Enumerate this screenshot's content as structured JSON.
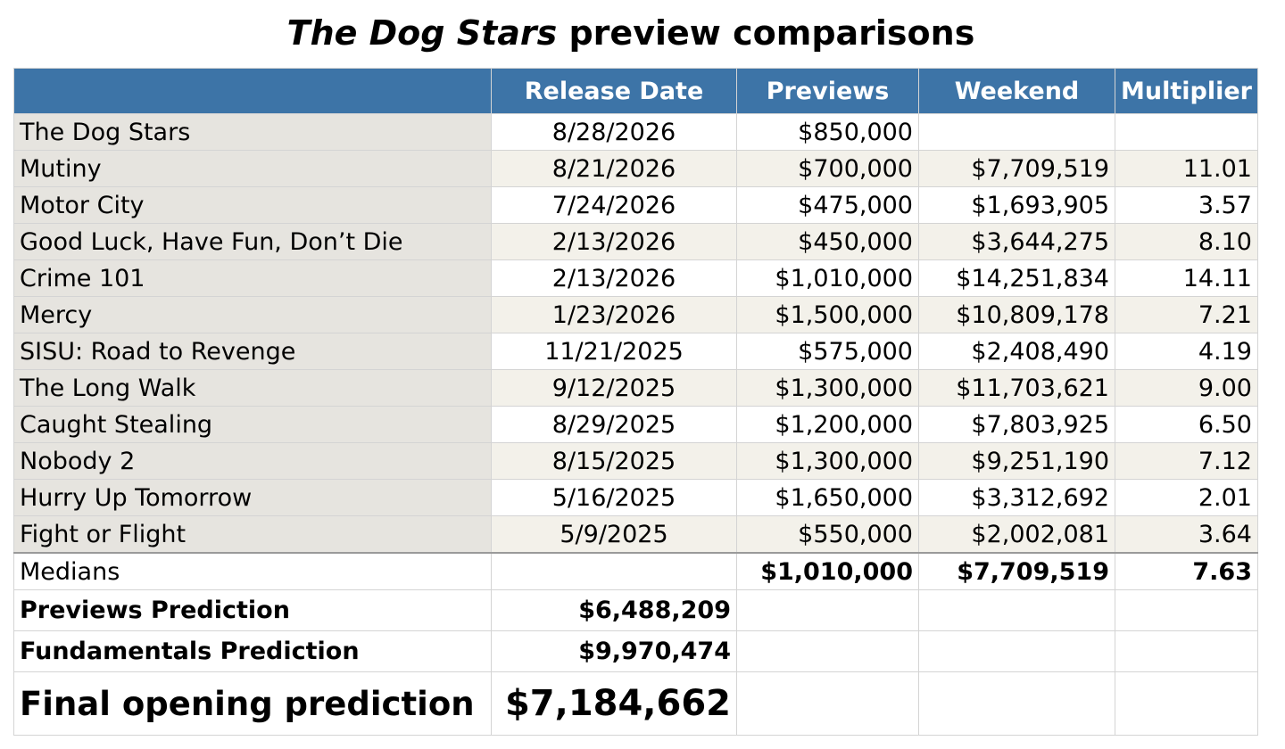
{
  "title": {
    "italic": "The Dog Stars",
    "rest": " preview comparisons"
  },
  "columns": {
    "name": "",
    "release_date": "Release Date",
    "previews": "Previews",
    "weekend": "Weekend",
    "multiplier": "Multiplier"
  },
  "rows": [
    {
      "name": "The Dog Stars",
      "release_date": "8/28/2026",
      "previews": "$850,000",
      "weekend": "",
      "multiplier": ""
    },
    {
      "name": "Mutiny",
      "release_date": "8/21/2026",
      "previews": "$700,000",
      "weekend": "$7,709,519",
      "multiplier": "11.01"
    },
    {
      "name": "Motor City",
      "release_date": "7/24/2026",
      "previews": "$475,000",
      "weekend": "$1,693,905",
      "multiplier": "3.57"
    },
    {
      "name": "Good Luck, Have Fun, Don’t Die",
      "release_date": "2/13/2026",
      "previews": "$450,000",
      "weekend": "$3,644,275",
      "multiplier": "8.10"
    },
    {
      "name": "Crime 101",
      "release_date": "2/13/2026",
      "previews": "$1,010,000",
      "weekend": "$14,251,834",
      "multiplier": "14.11"
    },
    {
      "name": "Mercy",
      "release_date": "1/23/2026",
      "previews": "$1,500,000",
      "weekend": "$10,809,178",
      "multiplier": "7.21"
    },
    {
      "name": "SISU: Road to Revenge",
      "release_date": "11/21/2025",
      "previews": "$575,000",
      "weekend": "$2,408,490",
      "multiplier": "4.19"
    },
    {
      "name": "The Long Walk",
      "release_date": "9/12/2025",
      "previews": "$1,300,000",
      "weekend": "$11,703,621",
      "multiplier": "9.00"
    },
    {
      "name": "Caught Stealing",
      "release_date": "8/29/2025",
      "previews": "$1,200,000",
      "weekend": "$7,803,925",
      "multiplier": "6.50"
    },
    {
      "name": "Nobody 2",
      "release_date": "8/15/2025",
      "previews": "$1,300,000",
      "weekend": "$9,251,190",
      "multiplier": "7.12"
    },
    {
      "name": "Hurry Up Tomorrow",
      "release_date": "5/16/2025",
      "previews": "$1,650,000",
      "weekend": "$3,312,692",
      "multiplier": "2.01"
    },
    {
      "name": "Fight or Flight",
      "release_date": "5/9/2025",
      "previews": "$550,000",
      "weekend": "$2,002,081",
      "multiplier": "3.64"
    }
  ],
  "medians": {
    "label": "Medians",
    "previews": "$1,010,000",
    "weekend": "$7,709,519",
    "multiplier": "7.63"
  },
  "predictions": {
    "previews": {
      "label": "Previews Prediction",
      "value": "$6,488,209"
    },
    "fundamentals": {
      "label": "Fundamentals Prediction",
      "value": "$9,970,474"
    },
    "final": {
      "label": "Final opening prediction",
      "value": "$7,184,662"
    }
  },
  "colors": {
    "header_bg": "#3d74a7",
    "header_text": "#ffffff",
    "name_col_bg": "#e6e4df",
    "alt_row_bg": "#f3f1ea"
  }
}
